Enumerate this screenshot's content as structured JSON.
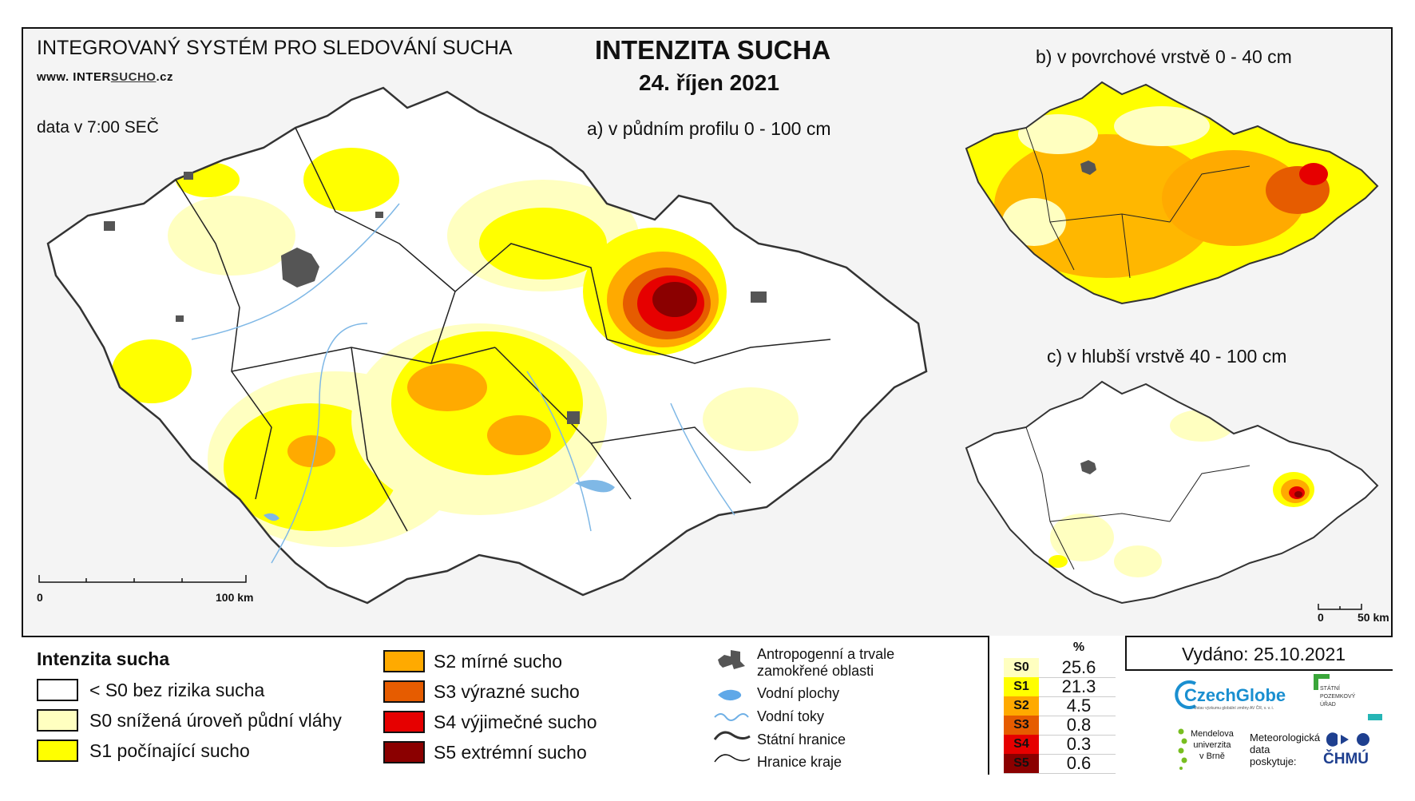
{
  "header": {
    "system_title": "INTEGROVANÝ SYSTÉM PRO SLEDOVÁNÍ SUCHA",
    "website_prefix": "www. INTER",
    "website_underlined": "SUCHO",
    "website_suffix": ".cz",
    "data_time": "data v 7:00 SEČ",
    "main_title": "INTENZITA SUCHA",
    "date": "24. říjen 2021"
  },
  "maps": {
    "a_title": "a) v půdním profilu 0 - 100 cm",
    "b_title": "b) v povrchové vrstvě 0 - 40 cm",
    "c_title": "c) v hlubší vrstvě 40 - 100 cm",
    "scale_main": {
      "start": "0",
      "end": "100 km"
    },
    "scale_small": {
      "start": "0",
      "end": "50 km"
    }
  },
  "legend": {
    "title": "Intenzita sucha",
    "classes": [
      {
        "label": "< S0 bez rizika sucha",
        "color": "#ffffff"
      },
      {
        "label": "S0 snížená úroveň půdní vláhy",
        "color": "#ffffc0"
      },
      {
        "label": "S1 počínající sucho",
        "color": "#ffff00"
      },
      {
        "label": "S2 mírné sucho",
        "color": "#ffaa00"
      },
      {
        "label": "S3 výrazné sucho",
        "color": "#e65c00"
      },
      {
        "label": "S4 výjimečné sucho",
        "color": "#e60000"
      },
      {
        "label": "S5 extrémní sucho",
        "color": "#8b0000"
      }
    ],
    "symbols": [
      {
        "label": "Antropogenní a trvale zamokřené oblasti",
        "icon": "urban-area-icon"
      },
      {
        "label": "Vodní plochy",
        "icon": "water-body-icon"
      },
      {
        "label": "Vodní toky",
        "icon": "river-icon"
      },
      {
        "label": "Státní hranice",
        "icon": "state-border-icon"
      },
      {
        "label": "Hranice kraje",
        "icon": "region-border-icon"
      }
    ]
  },
  "stats": {
    "header": "%",
    "rows": [
      {
        "cls": "S0",
        "value": "25.6",
        "color": "#ffffc0"
      },
      {
        "cls": "S1",
        "value": "21.3",
        "color": "#ffff00"
      },
      {
        "cls": "S2",
        "value": "4.5",
        "color": "#ffaa00"
      },
      {
        "cls": "S3",
        "value": "0.8",
        "color": "#e65c00"
      },
      {
        "cls": "S4",
        "value": "0.3",
        "color": "#e60000"
      },
      {
        "cls": "S5",
        "value": "0.6",
        "color": "#8b0000"
      }
    ]
  },
  "issued": "Vydáno: 25.10.2021",
  "logos": {
    "czechglobe": "CzechGlobe",
    "czechglobe_sub": "Ústav výzkumu globální změny AV ČR, v. v. i.",
    "spu_line1": "STÁTNÍ",
    "spu_line2": "POZEMKOVÝ",
    "spu_line3": "ÚŘAD",
    "mendel_line1": "Mendelova",
    "mendel_line2": "univerzita",
    "mendel_line3": "v Brně",
    "meteo_line1": "Meteorologická",
    "meteo_line2": "data",
    "meteo_line3": "poskytuje:",
    "chmu": "ČHMÚ"
  }
}
